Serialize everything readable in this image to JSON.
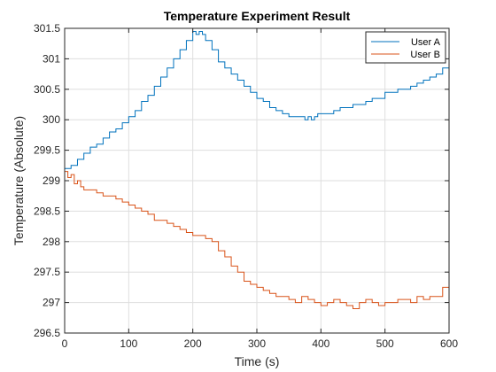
{
  "chart_data": {
    "type": "line",
    "title": "Temperature Experiment Result",
    "xlabel": "Time (s)",
    "ylabel": "Temperature (Absolute)",
    "xlim": [
      0,
      600
    ],
    "ylim": [
      296.5,
      301.5
    ],
    "xticks": [
      0,
      100,
      200,
      300,
      400,
      500,
      600
    ],
    "xtick_labels": [
      "0",
      "100",
      "200",
      "300",
      "400",
      "500",
      "600"
    ],
    "yticks": [
      296.5,
      297,
      297.5,
      298,
      298.5,
      299,
      299.5,
      300,
      300.5,
      301,
      301.5
    ],
    "ytick_labels": [
      "296.5",
      "297",
      "297.5",
      "298",
      "298.5",
      "299",
      "299.5",
      "300",
      "300.5",
      "301",
      "301.5"
    ],
    "grid": true,
    "legend_position": "top-right",
    "series": [
      {
        "name": "User A",
        "color": "#0072BD",
        "x": [
          0,
          10,
          20,
          30,
          40,
          50,
          60,
          70,
          80,
          90,
          100,
          110,
          120,
          130,
          140,
          150,
          160,
          170,
          180,
          190,
          200,
          205,
          210,
          215,
          220,
          230,
          240,
          250,
          260,
          270,
          280,
          290,
          300,
          310,
          320,
          330,
          340,
          350,
          360,
          370,
          375,
          380,
          385,
          390,
          395,
          400,
          410,
          420,
          430,
          440,
          450,
          460,
          470,
          480,
          490,
          500,
          510,
          520,
          530,
          540,
          550,
          560,
          570,
          580,
          590,
          600
        ],
        "y": [
          299.2,
          299.25,
          299.35,
          299.45,
          299.55,
          299.6,
          299.7,
          299.8,
          299.85,
          299.95,
          300.05,
          300.15,
          300.3,
          300.4,
          300.55,
          300.7,
          300.85,
          301.0,
          301.15,
          301.3,
          301.45,
          301.4,
          301.45,
          301.4,
          301.3,
          301.15,
          300.95,
          300.85,
          300.75,
          300.65,
          300.55,
          300.45,
          300.35,
          300.3,
          300.2,
          300.15,
          300.1,
          300.05,
          300.05,
          300.05,
          300.0,
          300.05,
          300.0,
          300.05,
          300.1,
          300.1,
          300.1,
          300.15,
          300.2,
          300.2,
          300.25,
          300.25,
          300.3,
          300.35,
          300.35,
          300.45,
          300.45,
          300.5,
          300.5,
          300.55,
          300.6,
          300.65,
          300.7,
          300.75,
          300.85,
          300.85
        ]
      },
      {
        "name": "User B",
        "color": "#D95319",
        "x": [
          0,
          5,
          10,
          15,
          20,
          25,
          30,
          40,
          50,
          60,
          70,
          80,
          90,
          100,
          110,
          120,
          130,
          140,
          150,
          160,
          170,
          180,
          190,
          200,
          210,
          220,
          230,
          240,
          250,
          260,
          270,
          280,
          290,
          300,
          310,
          320,
          330,
          340,
          350,
          360,
          370,
          380,
          390,
          400,
          410,
          420,
          430,
          440,
          450,
          460,
          470,
          480,
          490,
          500,
          510,
          520,
          530,
          540,
          550,
          560,
          570,
          580,
          590,
          600
        ],
        "y": [
          299.15,
          299.05,
          299.1,
          298.95,
          299.0,
          298.9,
          298.85,
          298.85,
          298.8,
          298.75,
          298.75,
          298.7,
          298.65,
          298.6,
          298.55,
          298.5,
          298.45,
          298.35,
          298.35,
          298.3,
          298.25,
          298.2,
          298.15,
          298.1,
          298.1,
          298.05,
          298.0,
          297.85,
          297.75,
          297.6,
          297.5,
          297.35,
          297.3,
          297.25,
          297.2,
          297.15,
          297.1,
          297.1,
          297.05,
          297.0,
          297.1,
          297.05,
          297.0,
          296.95,
          297.0,
          297.05,
          297.0,
          296.95,
          296.9,
          297.0,
          297.05,
          297.0,
          296.95,
          297.0,
          297.0,
          297.05,
          297.05,
          297.0,
          297.1,
          297.05,
          297.1,
          297.1,
          297.25,
          297.25
        ]
      }
    ]
  }
}
